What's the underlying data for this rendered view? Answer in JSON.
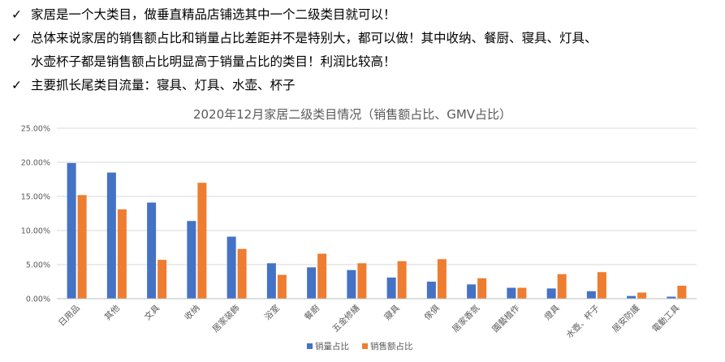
{
  "bullets": [
    {
      "lines": [
        "家居是一个大类目，做垂直精品店铺选其中一个二级类目就可以！"
      ]
    },
    {
      "lines": [
        "总体来说家居的销售额占比和销量占比差距并不是特别大，都可以做！其中收纳、餐厨、寝具、灯具、",
        "水壶杯子都是销售额占比明显高于销量占比的类目！利润比较高！"
      ]
    },
    {
      "lines": [
        "主要抓长尾类目流量：寝具、灯具、水壶、杯子"
      ]
    }
  ],
  "check_glyph": "✓",
  "chart_data": {
    "type": "bar",
    "title": "2020年12月家居二级类目情况（销售额占比、GMV占比）",
    "categories": [
      "日用品",
      "其他",
      "文具",
      "收纳",
      "居家装飾",
      "浴室",
      "餐廚",
      "五金修繕",
      "寢具",
      "傢俱",
      "居家香氛",
      "園藝植作",
      "燈具",
      "水壺、杯子",
      "居安防護",
      "電動工具"
    ],
    "series": [
      {
        "name": "销量占比",
        "color": "#4472C4",
        "values": [
          19.9,
          18.5,
          14.1,
          11.4,
          9.1,
          5.2,
          4.6,
          4.2,
          3.1,
          2.5,
          2.1,
          1.6,
          1.5,
          1.1,
          0.4,
          0.3
        ]
      },
      {
        "name": "销售额占比",
        "color": "#ED7D31",
        "values": [
          15.2,
          13.1,
          5.7,
          17.0,
          7.3,
          3.5,
          6.6,
          5.2,
          5.5,
          5.8,
          3.0,
          1.6,
          3.6,
          3.9,
          0.9,
          1.9
        ]
      }
    ],
    "yticks": [
      "0.00%",
      "5.00%",
      "10.00%",
      "15.00%",
      "20.00%",
      "25.00%"
    ],
    "ylim": [
      0,
      25
    ],
    "grid": true,
    "legend_position": "bottom"
  }
}
